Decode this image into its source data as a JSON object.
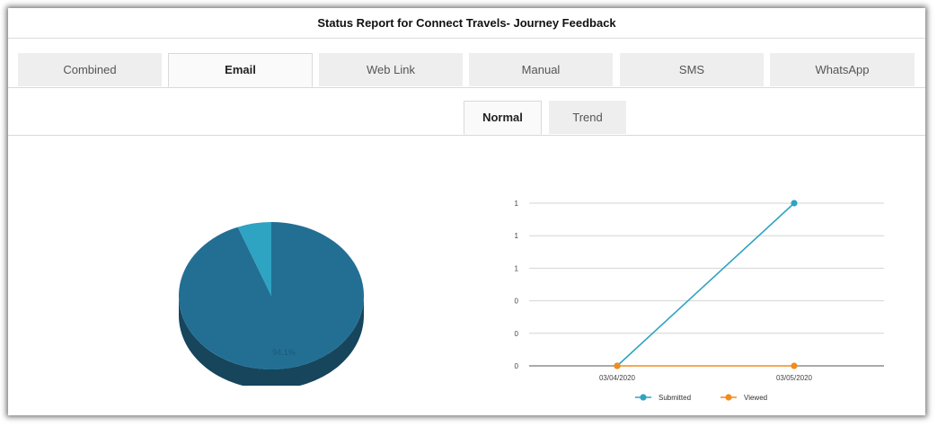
{
  "report": {
    "title": "Status Report for Connect Travels- Journey Feedback"
  },
  "channel_tabs": [
    {
      "label": "Combined",
      "active": false
    },
    {
      "label": "Email",
      "active": true
    },
    {
      "label": "Web Link",
      "active": false
    },
    {
      "label": "Manual",
      "active": false
    },
    {
      "label": "SMS",
      "active": false
    },
    {
      "label": "WhatsApp",
      "active": false
    }
  ],
  "view_tabs": [
    {
      "label": "Normal",
      "active": true
    },
    {
      "label": "Trend",
      "active": false
    }
  ],
  "chart_data": [
    {
      "type": "pie",
      "style": "3d",
      "slices": [
        {
          "value": 94.1,
          "label": "94.1%",
          "color": "#236f94"
        },
        {
          "value": 5.9,
          "label": "",
          "color": "#2ea3c2"
        }
      ]
    },
    {
      "type": "line",
      "x": [
        "03/04/2020",
        "03/05/2020"
      ],
      "y_ticks": [
        "0",
        "0",
        "0",
        "1",
        "1",
        "1"
      ],
      "ylim": [
        0,
        1
      ],
      "grid": true,
      "legend_position": "bottom",
      "series": [
        {
          "name": "Submitted",
          "values": [
            0,
            1
          ],
          "color": "#2ea3c2"
        },
        {
          "name": "Viewed",
          "values": [
            0,
            0
          ],
          "color": "#f28c1b"
        }
      ]
    }
  ]
}
